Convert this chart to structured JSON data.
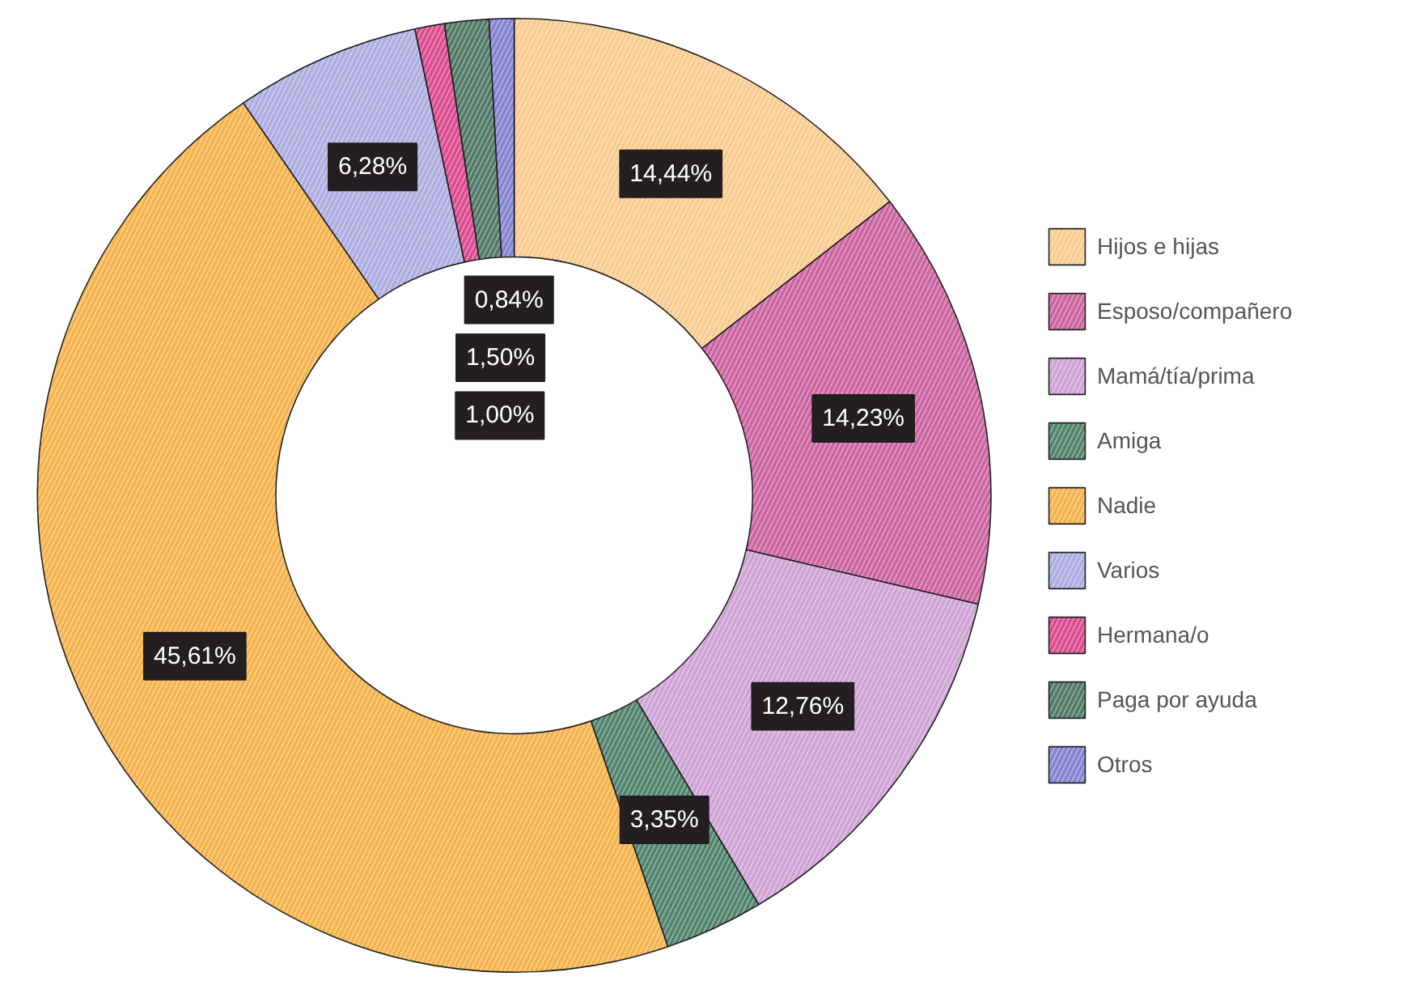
{
  "chart_data": {
    "type": "donut",
    "categories": [
      "Hijos e hijas",
      "Esposo/compañero",
      "Mamá/tía/prima",
      "Amiga",
      "Nadie",
      "Varios",
      "Hermana/o",
      "Paga por ayuda",
      "Otros"
    ],
    "values": [
      14.44,
      14.23,
      12.76,
      3.35,
      45.61,
      6.28,
      1.0,
      1.5,
      0.84
    ],
    "colors": [
      "#f8c27a",
      "#c2468e",
      "#c592cc",
      "#2f6b52",
      "#f5a52a",
      "#9d9ddb",
      "#d3287a",
      "#2f5f4a",
      "#6c6cc9"
    ],
    "value_labels": [
      "14,44%",
      "14,23%",
      "12,76%",
      "3,35%",
      "45,61%",
      "6,28%",
      "1,00%",
      "1,50%",
      "0,84%"
    ],
    "legend": "right"
  }
}
